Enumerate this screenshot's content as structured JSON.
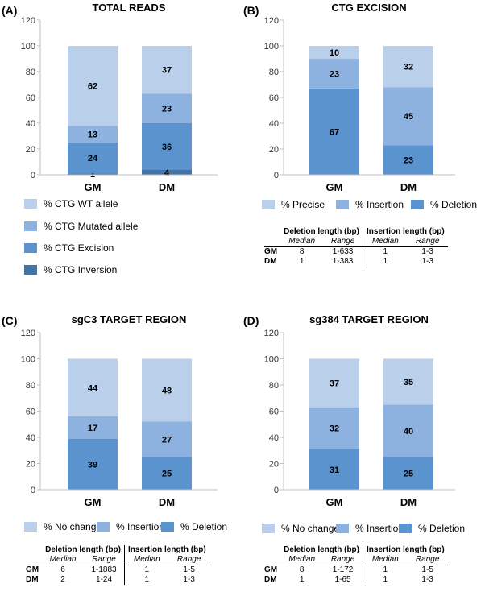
{
  "colors": {
    "wt": "#b9cfea",
    "mutated": "#8db2e0",
    "excision": "#5b93cf",
    "inversion": "#4274a8",
    "axis": "#c0c0c0"
  },
  "chart_data": [
    {
      "type": "bar",
      "stacked": true,
      "panel_label": "(A)",
      "title": "TOTAL READS",
      "categories": [
        "GM",
        "DM"
      ],
      "ylim": [
        0,
        120
      ],
      "yticks": [
        "0",
        "20",
        "40",
        "60",
        "80",
        "100",
        "120"
      ],
      "series": [
        {
          "name": "% CTG Inversion",
          "values": [
            1,
            4
          ],
          "color": "#4274a8"
        },
        {
          "name": "% CTG Excision",
          "values": [
            24,
            36
          ],
          "color": "#5b93cf"
        },
        {
          "name": "% CTG Mutated allele",
          "values": [
            13,
            23
          ],
          "color": "#8db2e0"
        },
        {
          "name": "% CTG WT allele",
          "values": [
            62,
            37
          ],
          "color": "#b9cfea"
        }
      ],
      "legend": [
        "% CTG WT allele",
        "% CTG Mutated allele",
        "% CTG Excision",
        "% CTG Inversion"
      ]
    },
    {
      "type": "bar",
      "stacked": true,
      "panel_label": "(B)",
      "title": "CTG EXCISION",
      "categories": [
        "GM",
        "DM"
      ],
      "ylim": [
        0,
        120
      ],
      "yticks": [
        "0",
        "20",
        "40",
        "60",
        "80",
        "100",
        "120"
      ],
      "series": [
        {
          "name": "% Deletion",
          "values": [
            67,
            23
          ],
          "color": "#5b93cf"
        },
        {
          "name": "% Insertion",
          "values": [
            23,
            45
          ],
          "color": "#8db2e0"
        },
        {
          "name": "% Precise",
          "values": [
            10,
            32
          ],
          "color": "#b9cfea"
        }
      ],
      "legend": [
        "% Precise",
        "% Insertion",
        "% Deletion"
      ],
      "table": {
        "headers": [
          "Deletion length (bp)",
          "Insertion length (bp)"
        ],
        "subheaders": [
          "Median",
          "Range",
          "Median",
          "Range"
        ],
        "rows": [
          {
            "label": "GM",
            "values": [
              "8",
              "1-633",
              "1",
              "1-3"
            ]
          },
          {
            "label": "DM",
            "values": [
              "1",
              "1-383",
              "1",
              "1-3"
            ]
          }
        ]
      }
    },
    {
      "type": "bar",
      "stacked": true,
      "panel_label": "(C)",
      "title": "sgC3 TARGET REGION",
      "categories": [
        "GM",
        "DM"
      ],
      "ylim": [
        0,
        120
      ],
      "yticks": [
        "0",
        "20",
        "40",
        "60",
        "80",
        "100",
        "120"
      ],
      "series": [
        {
          "name": "% Deletion",
          "values": [
            39,
            25
          ],
          "color": "#5b93cf"
        },
        {
          "name": "% Insertion",
          "values": [
            17,
            27
          ],
          "color": "#8db2e0"
        },
        {
          "name": "% No change",
          "values": [
            44,
            48
          ],
          "color": "#b9cfea"
        }
      ],
      "legend": [
        "% No change",
        "% Insertion",
        "% Deletion"
      ],
      "table": {
        "headers": [
          "Deletion length (bp)",
          "Insertion length (bp)"
        ],
        "subheaders": [
          "Median",
          "Range",
          "Median",
          "Range"
        ],
        "rows": [
          {
            "label": "GM",
            "values": [
              "6",
              "1-1883",
              "1",
              "1-5"
            ]
          },
          {
            "label": "DM",
            "values": [
              "2",
              "1-24",
              "1",
              "1-3"
            ]
          }
        ]
      }
    },
    {
      "type": "bar",
      "stacked": true,
      "panel_label": "(D)",
      "title": "sg384 TARGET REGION",
      "categories": [
        "GM",
        "DM"
      ],
      "ylim": [
        0,
        120
      ],
      "yticks": [
        "0",
        "20",
        "40",
        "60",
        "80",
        "100",
        "120"
      ],
      "series": [
        {
          "name": "% Deletion",
          "values": [
            31,
            25
          ],
          "color": "#5b93cf"
        },
        {
          "name": "% Insertion",
          "values": [
            32,
            40
          ],
          "color": "#8db2e0"
        },
        {
          "name": "% No change",
          "values": [
            37,
            35
          ],
          "color": "#b9cfea"
        }
      ],
      "legend": [
        "% No change",
        "% Insertion",
        "% Deletion"
      ],
      "table": {
        "headers": [
          "Deletion length (bp)",
          "Insertion length (bp)"
        ],
        "subheaders": [
          "Median",
          "Range",
          "Median",
          "Range"
        ],
        "rows": [
          {
            "label": "GM",
            "values": [
              "8",
              "1-172",
              "1",
              "1-5"
            ]
          },
          {
            "label": "DM",
            "values": [
              "1",
              "1-65",
              "1",
              "1-3"
            ]
          }
        ]
      }
    }
  ]
}
